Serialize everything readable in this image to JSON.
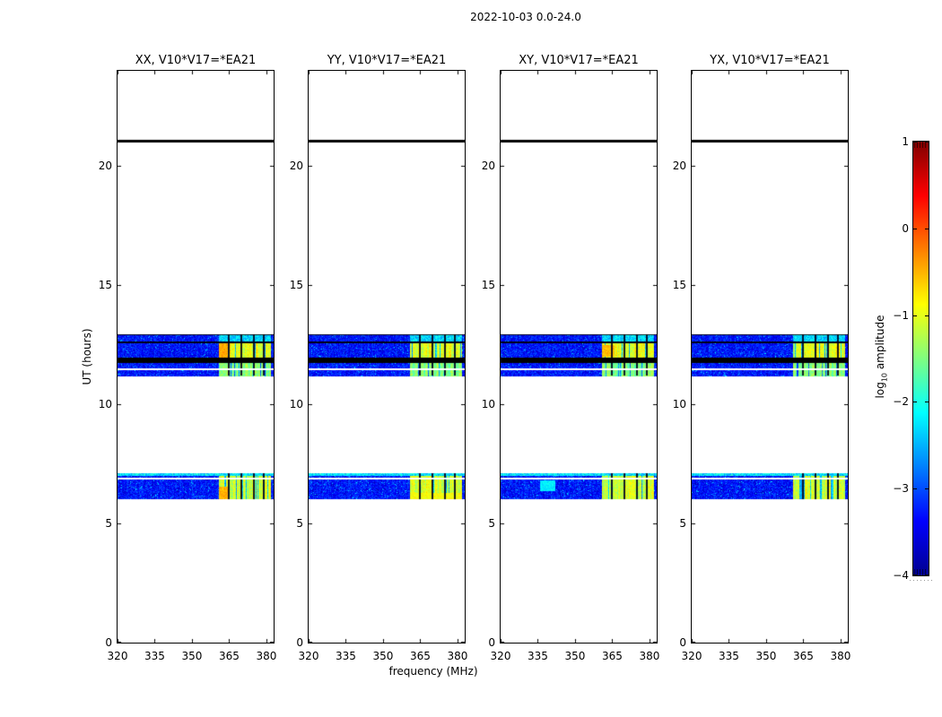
{
  "chart_data": {
    "type": "heatmap",
    "suptitle": "2022-10-03 0.0-24.0",
    "xlabel": "frequency (MHz)",
    "ylabel": "UT (hours)",
    "xlim": [
      320,
      382.9
    ],
    "ylim": [
      0,
      24
    ],
    "xticks": [
      320,
      335,
      350,
      365,
      380
    ],
    "yticks": [
      0,
      5,
      10,
      15,
      20
    ],
    "grid": false,
    "background_log_amp": -3.3,
    "subplots": [
      {
        "label": "XX, V10*V17=*EA21",
        "hotspots": [
          {
            "f": [
              360.7,
              364.5
            ],
            "ut": [
              11.96,
              12.6
            ],
            "log_amp": -0.45
          },
          {
            "f": [
              360.7,
              364.5
            ],
            "ut": [
              6.02,
              6.55
            ],
            "log_amp": -0.5
          }
        ]
      },
      {
        "label": "YY, V10*V17=*EA21",
        "hotspots": [
          {
            "f": [
              360.7,
              381.8
            ],
            "ut": [
              6.02,
              6.3
            ],
            "log_amp": -0.9
          }
        ]
      },
      {
        "label": "XY, V10*V17=*EA21",
        "hotspots": [
          {
            "f": [
              361.0,
              366.0
            ],
            "ut": [
              12.0,
              12.5
            ],
            "log_amp": -0.55
          },
          {
            "f": [
              336.0,
              342.0
            ],
            "ut": [
              6.35,
              6.8
            ],
            "log_amp": -2.2
          }
        ]
      },
      {
        "label": "YX, V10*V17=*EA21",
        "hotspots": []
      }
    ],
    "scans": [
      {
        "ut_start": 20.97,
        "ut_end": 21.09,
        "kind": "flagged"
      },
      {
        "ut_start": 11.96,
        "ut_end": 12.94,
        "kind": "data",
        "dark_line_ut": 12.64,
        "top_edge": "dark",
        "rfi_log_amp": -1.0,
        "rfi_log_amp_above_line": -2.3
      },
      {
        "ut_start": 11.72,
        "ut_end": 11.96,
        "kind": "flagged"
      },
      {
        "ut_start": 11.19,
        "ut_end": 11.72,
        "kind": "data",
        "white_line_ut": 11.51,
        "rfi_log_amp": -1.5
      },
      {
        "ut_start": 6.02,
        "ut_end": 7.11,
        "kind": "data",
        "white_line_ut": 6.92,
        "top_edge": "cyan",
        "rfi_log_amp": -1.1
      }
    ],
    "rfi_region": {
      "f_start": 360.7,
      "f_end": 381.8,
      "dividers_mhz": [
        364.5,
        369.5,
        374.5,
        378.5
      ]
    },
    "colorbar": {
      "label": "log10 amplitude",
      "label_prefix": "log",
      "label_sub": "10",
      "label_suffix": " amplitude",
      "ticks": [
        1,
        0,
        -1,
        -2,
        -3,
        -4
      ],
      "vmin": -4,
      "vmax": 1,
      "cmap": "jet",
      "cmap_stops": [
        "#00008f",
        "#0000ff",
        "#00ffff",
        "#ffff00",
        "#ff0000",
        "#7f0000"
      ],
      "legend_position": "right"
    }
  }
}
